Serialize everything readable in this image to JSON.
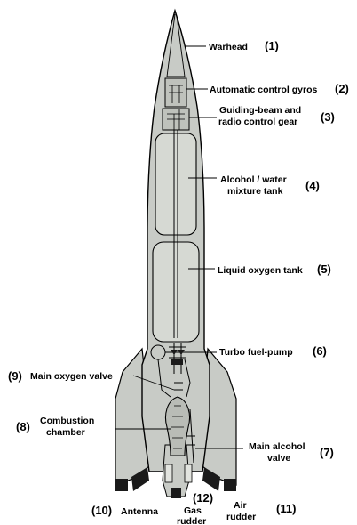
{
  "labels": {
    "warhead": {
      "text": "Warhead",
      "number": "(1)"
    },
    "gyros": {
      "text": "Automatic control gyros",
      "number": "(2)"
    },
    "guiding": {
      "line1": "Guiding-beam and",
      "line2": "radio control gear",
      "number": "(3)"
    },
    "alcohol_tank": {
      "line1": "Alcohol / water",
      "line2": "mixture tank",
      "number": "(4)"
    },
    "lox_tank": {
      "text": "Liquid oxygen tank",
      "number": "(5)"
    },
    "turbo": {
      "text": "Turbo fuel-pump",
      "number": "(6)"
    },
    "oxygen_valve": {
      "text": "Main oxygen valve",
      "number": "(9)"
    },
    "combustion": {
      "line1": "Combustion",
      "line2": "chamber",
      "number": "(8)"
    },
    "alcohol_valve": {
      "line1": "Main alcohol",
      "line2": "valve",
      "number": "(7)"
    },
    "antenna": {
      "text": "Antenna",
      "number": "(10)"
    },
    "gas_rudder": {
      "line1": "Gas",
      "line2": "rudder",
      "number": "(12)"
    },
    "air_rudder": {
      "line1": "Air",
      "line2": "rudder",
      "number": "(11)"
    }
  },
  "colors": {
    "body": "#c8cbc6",
    "tank": "#d6d9d3",
    "fin_tip": "#1a1a1a",
    "ink": "#000000"
  }
}
